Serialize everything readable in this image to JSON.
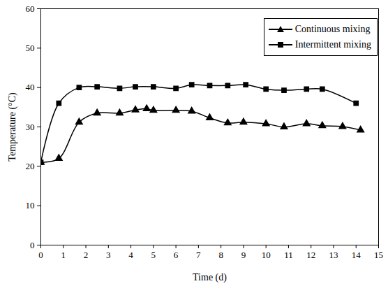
{
  "chart_data": {
    "type": "line",
    "x_label": "Time (d)",
    "y_label": "Temperature (°C)",
    "xlim": [
      0,
      15
    ],
    "xticks": [
      0,
      1,
      2,
      3,
      4,
      5,
      6,
      7,
      8,
      9,
      10,
      11,
      12,
      13,
      14,
      15
    ],
    "ylim": [
      0,
      60
    ],
    "yticks": [
      0,
      10,
      20,
      30,
      40,
      50,
      60
    ],
    "grid": false,
    "legend": "top-right",
    "series": [
      {
        "name": "Continuous mixing",
        "color": "#000000",
        "marker": "triangle",
        "x": [
          0,
          0.8,
          1.7,
          2.5,
          3.5,
          4.2,
          4.7,
          5,
          6,
          6.7,
          7.5,
          8.3,
          9,
          10,
          10.8,
          11.8,
          12.5,
          13.4,
          14.2
        ],
        "values": [
          21,
          22,
          31.2,
          33.5,
          33.5,
          34.3,
          34.6,
          34.2,
          34.2,
          34,
          32.3,
          31,
          31.2,
          30.8,
          30,
          30.8,
          30.3,
          30.1,
          29.2
        ]
      },
      {
        "name": "Intermittent mixing",
        "color": "#000000",
        "marker": "square",
        "x": [
          0,
          0.8,
          1.7,
          2.5,
          3.5,
          4.2,
          5,
          6,
          6.7,
          7.5,
          8.3,
          9.1,
          10,
          10.8,
          11.8,
          12.5,
          14
        ],
        "values": [
          21,
          36,
          40,
          40.2,
          39.8,
          40.2,
          40.2,
          39.8,
          40.7,
          40.5,
          40.5,
          40.7,
          39.6,
          39.3,
          39.6,
          39.6,
          36
        ]
      }
    ]
  }
}
